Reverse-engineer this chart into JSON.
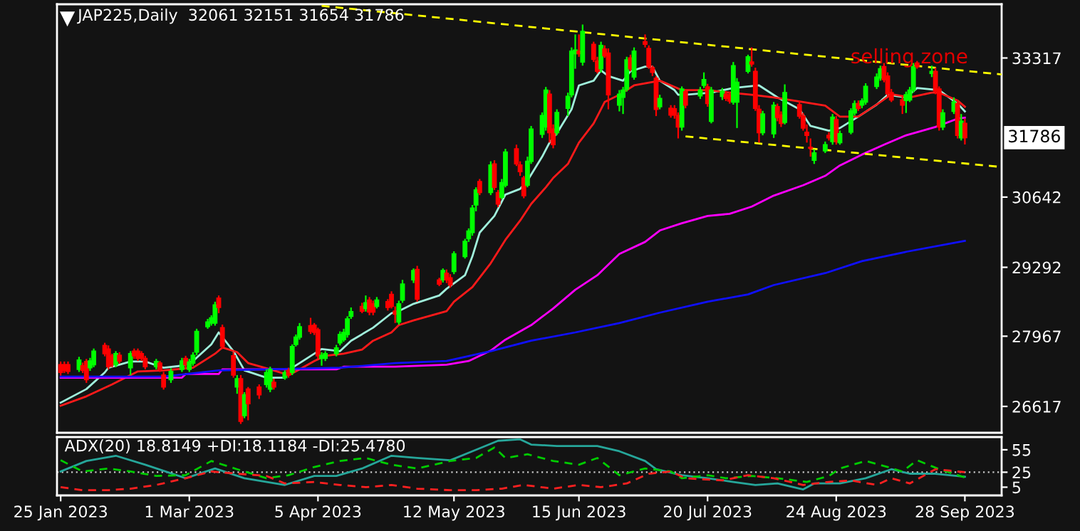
{
  "chart_data": [
    {
      "type": "candlestick",
      "title": "JAP225,Daily  32061 32151 31654 31786",
      "x": [
        "2023-01-25",
        "2023-01-26",
        "2023-01-27",
        "2023-01-30",
        "2023-01-31",
        "2023-02-01",
        "2023-02-02",
        "2023-02-03",
        "2023-02-06",
        "2023-02-07",
        "2023-02-08",
        "2023-02-09",
        "2023-02-10",
        "2023-02-13",
        "2023-02-14",
        "2023-02-15",
        "2023-02-16",
        "2023-02-17",
        "2023-02-20",
        "2023-02-21",
        "2023-02-22",
        "2023-02-24",
        "2023-02-27",
        "2023-02-28",
        "2023-03-01",
        "2023-03-02",
        "2023-03-03",
        "2023-03-06",
        "2023-03-07",
        "2023-03-08",
        "2023-03-09",
        "2023-03-10",
        "2023-03-13",
        "2023-03-14",
        "2023-03-15",
        "2023-03-16",
        "2023-03-17",
        "2023-03-20",
        "2023-03-22",
        "2023-03-23",
        "2023-03-24",
        "2023-03-27",
        "2023-03-28",
        "2023-03-29",
        "2023-03-30",
        "2023-03-31",
        "2023-04-03",
        "2023-04-04",
        "2023-04-05",
        "2023-04-06",
        "2023-04-07",
        "2023-04-10",
        "2023-04-11",
        "2023-04-12",
        "2023-04-13",
        "2023-04-14",
        "2023-04-17",
        "2023-04-18",
        "2023-04-19",
        "2023-04-20",
        "2023-04-21",
        "2023-04-24",
        "2023-04-25",
        "2023-04-26",
        "2023-04-27",
        "2023-04-28",
        "2023-05-01",
        "2023-05-02",
        "2023-05-08",
        "2023-05-09",
        "2023-05-10",
        "2023-05-11",
        "2023-05-12",
        "2023-05-15",
        "2023-05-16",
        "2023-05-17",
        "2023-05-18",
        "2023-05-19",
        "2023-05-22",
        "2023-05-23",
        "2023-05-24",
        "2023-05-25",
        "2023-05-26",
        "2023-05-29",
        "2023-05-30",
        "2023-05-31",
        "2023-06-01",
        "2023-06-02",
        "2023-06-05",
        "2023-06-06",
        "2023-06-07",
        "2023-06-08",
        "2023-06-09",
        "2023-06-12",
        "2023-06-13",
        "2023-06-14",
        "2023-06-15",
        "2023-06-16",
        "2023-06-19",
        "2023-06-20",
        "2023-06-21",
        "2023-06-22",
        "2023-06-23",
        "2023-06-26",
        "2023-06-27",
        "2023-06-28",
        "2023-06-29",
        "2023-06-30",
        "2023-07-03",
        "2023-07-04",
        "2023-07-05",
        "2023-07-06",
        "2023-07-07",
        "2023-07-10",
        "2023-07-11",
        "2023-07-12",
        "2023-07-13",
        "2023-07-14",
        "2023-07-18",
        "2023-07-19",
        "2023-07-20",
        "2023-07-21",
        "2023-07-24",
        "2023-07-25",
        "2023-07-26",
        "2023-07-27",
        "2023-07-28",
        "2023-07-31",
        "2023-08-01",
        "2023-08-02",
        "2023-08-03",
        "2023-08-04",
        "2023-08-07",
        "2023-08-08",
        "2023-08-09",
        "2023-08-10",
        "2023-08-14",
        "2023-08-15",
        "2023-08-16",
        "2023-08-17",
        "2023-08-18",
        "2023-08-21",
        "2023-08-22",
        "2023-08-23",
        "2023-08-24",
        "2023-08-25",
        "2023-08-28",
        "2023-08-29",
        "2023-08-30",
        "2023-08-31",
        "2023-09-01",
        "2023-09-04",
        "2023-09-05",
        "2023-09-06",
        "2023-09-07",
        "2023-09-08",
        "2023-09-11",
        "2023-09-12",
        "2023-09-13",
        "2023-09-14",
        "2023-09-15",
        "2023-09-19",
        "2023-09-20",
        "2023-09-21",
        "2023-09-22",
        "2023-09-25",
        "2023-09-26",
        "2023-09-27",
        "2023-09-28"
      ],
      "ohlc": [
        [
          27420,
          27480,
          27210,
          27270
        ],
        [
          27420,
          27480,
          27260,
          27310
        ],
        [
          27420,
          27480,
          27240,
          27290
        ],
        [
          27330,
          27570,
          27280,
          27510
        ],
        [
          27400,
          27460,
          27260,
          27310
        ],
        [
          27480,
          27530,
          27070,
          27130
        ],
        [
          27360,
          27550,
          27300,
          27490
        ],
        [
          27420,
          27730,
          27370,
          27680
        ],
        [
          27790,
          27840,
          27580,
          27630
        ],
        [
          27720,
          27790,
          27330,
          27380
        ],
        [
          27590,
          27630,
          27370,
          27420
        ],
        [
          27420,
          27680,
          27370,
          27630
        ],
        [
          27600,
          27660,
          27440,
          27490
        ],
        [
          27360,
          27680,
          27220,
          27630
        ],
        [
          27680,
          27730,
          27530,
          27590
        ],
        [
          27680,
          27730,
          27490,
          27540
        ],
        [
          27630,
          27680,
          27490,
          27540
        ],
        [
          27540,
          27590,
          27330,
          27380
        ],
        [
          27380,
          27530,
          27330,
          27480
        ],
        [
          27450,
          27490,
          27280,
          27330
        ],
        [
          27220,
          27280,
          26940,
          26990
        ],
        [
          27130,
          27350,
          27070,
          27290
        ],
        [
          27330,
          27550,
          27280,
          27490
        ],
        [
          27540,
          27590,
          27370,
          27420
        ],
        [
          27330,
          27530,
          27280,
          27470
        ],
        [
          27450,
          27660,
          27400,
          27600
        ],
        [
          27660,
          28110,
          27600,
          28060
        ],
        [
          28150,
          28300,
          28110,
          28240
        ],
        [
          28220,
          28370,
          28170,
          28320
        ],
        [
          28220,
          28630,
          28170,
          28570
        ],
        [
          28700,
          28750,
          28410,
          28520
        ],
        [
          28130,
          28190,
          27720,
          27770
        ],
        [
          27590,
          27660,
          27170,
          27220
        ],
        [
          26990,
          27220,
          26860,
          27150
        ],
        [
          27150,
          27220,
          26280,
          26330
        ],
        [
          26440,
          26890,
          26390,
          26840
        ],
        [
          26950,
          26990,
          26350,
          26670
        ],
        [
          26990,
          27040,
          26760,
          26840
        ],
        [
          27040,
          27330,
          26980,
          27270
        ],
        [
          26950,
          27380,
          26890,
          27330
        ],
        [
          27080,
          27150,
          26940,
          26990
        ],
        [
          27170,
          27310,
          27130,
          27270
        ],
        [
          27310,
          27360,
          27170,
          27220
        ],
        [
          27270,
          27810,
          27220,
          27770
        ],
        [
          27810,
          28000,
          27770,
          27950
        ],
        [
          27950,
          28220,
          27900,
          28150
        ],
        [
          28170,
          28320,
          28010,
          28060
        ],
        [
          28180,
          28220,
          27990,
          28040
        ],
        [
          28090,
          28130,
          27530,
          27590
        ],
        [
          27540,
          27660,
          27400,
          27600
        ],
        [
          27540,
          27680,
          27490,
          27630
        ],
        [
          27630,
          27800,
          27580,
          27740
        ],
        [
          27840,
          28060,
          27790,
          28000
        ],
        [
          27900,
          28110,
          27860,
          28040
        ],
        [
          28000,
          28350,
          27940,
          28300
        ],
        [
          28350,
          28520,
          28300,
          28440
        ],
        [
          28540,
          28610,
          28410,
          28450
        ],
        [
          28500,
          28750,
          28440,
          28610
        ],
        [
          28660,
          28720,
          28370,
          28430
        ],
        [
          28590,
          28650,
          28370,
          28430
        ],
        [
          28540,
          28720,
          28500,
          28660
        ],
        [
          28630,
          28680,
          28460,
          28520
        ],
        [
          28770,
          28830,
          28500,
          28540
        ],
        [
          28450,
          28540,
          28220,
          28390
        ],
        [
          28240,
          28650,
          28190,
          28590
        ],
        [
          28660,
          29050,
          28610,
          28970
        ],
        [
          29050,
          29270,
          28990,
          29230
        ],
        [
          29250,
          29320,
          28630,
          28680
        ],
        [
          29050,
          29090,
          28930,
          28970
        ],
        [
          29050,
          29270,
          29000,
          29230
        ],
        [
          29180,
          29250,
          28990,
          29050
        ],
        [
          29090,
          29160,
          28900,
          28950
        ],
        [
          29210,
          29600,
          29160,
          29550
        ],
        [
          29500,
          29840,
          29460,
          29790
        ],
        [
          29840,
          30040,
          29780,
          29990
        ],
        [
          29960,
          30490,
          29900,
          30430
        ],
        [
          30490,
          30830,
          30370,
          30780
        ],
        [
          30940,
          30990,
          30680,
          30730
        ],
        [
          30730,
          31330,
          30680,
          31260
        ],
        [
          31280,
          31350,
          30780,
          30830
        ],
        [
          30730,
          30780,
          30450,
          30510
        ],
        [
          30640,
          30990,
          30600,
          30920
        ],
        [
          30870,
          31570,
          30830,
          31510
        ],
        [
          31570,
          31650,
          31240,
          31280
        ],
        [
          31260,
          31330,
          31050,
          31130
        ],
        [
          31010,
          31050,
          30620,
          30670
        ],
        [
          30870,
          31420,
          30830,
          31330
        ],
        [
          31330,
          32010,
          31280,
          31950
        ],
        [
          31850,
          32270,
          31780,
          32210
        ],
        [
          31990,
          32760,
          31920,
          32700
        ],
        [
          32620,
          32700,
          31690,
          31880
        ],
        [
          31950,
          32040,
          31580,
          31650
        ],
        [
          31880,
          32330,
          31830,
          32270
        ],
        [
          32350,
          32650,
          32200,
          32580
        ],
        [
          32610,
          33520,
          32560,
          33450
        ],
        [
          33400,
          33770,
          33110,
          33470
        ],
        [
          33450,
          33770,
          33340,
          33400
        ],
        [
          33240,
          33960,
          33170,
          33830
        ],
        [
          33580,
          33630,
          33240,
          33290
        ],
        [
          33260,
          33340,
          33020,
          33060
        ],
        [
          33110,
          33630,
          33040,
          33560
        ],
        [
          33490,
          33560,
          33320,
          33360
        ],
        [
          33410,
          33500,
          32330,
          32610
        ],
        [
          32410,
          32700,
          32290,
          32620
        ],
        [
          32560,
          32760,
          32240,
          32700
        ],
        [
          32720,
          33340,
          32670,
          33280
        ],
        [
          33320,
          33380,
          33060,
          33110
        ],
        [
          32950,
          33520,
          32900,
          33450
        ],
        [
          33630,
          33770,
          33520,
          33580
        ],
        [
          33500,
          33560,
          33110,
          33150
        ],
        [
          33130,
          33170,
          32970,
          33040
        ],
        [
          32930,
          32970,
          32200,
          32330
        ],
        [
          32380,
          32610,
          32330,
          32540
        ],
        [
          32350,
          32410,
          32170,
          32220
        ],
        [
          32340,
          32410,
          32150,
          32220
        ],
        [
          32210,
          32270,
          31770,
          31990
        ],
        [
          31990,
          32770,
          31920,
          32720
        ],
        [
          32670,
          32720,
          32350,
          32410
        ],
        [
          32590,
          32760,
          32530,
          32700
        ],
        [
          32790,
          33040,
          32740,
          32900
        ],
        [
          32760,
          32820,
          32380,
          32440
        ],
        [
          32100,
          32760,
          32060,
          32700
        ],
        [
          32580,
          32740,
          32510,
          32680
        ],
        [
          32620,
          32680,
          32490,
          32540
        ],
        [
          32610,
          32670,
          32440,
          32490
        ],
        [
          32470,
          33240,
          32420,
          33170
        ],
        [
          32470,
          32930,
          31970,
          32850
        ],
        [
          33060,
          33380,
          33020,
          33340
        ],
        [
          33240,
          33520,
          33150,
          33200
        ],
        [
          33060,
          33130,
          32300,
          32350
        ],
        [
          32330,
          32410,
          31690,
          31880
        ],
        [
          31880,
          32300,
          31830,
          32240
        ],
        [
          31860,
          32470,
          31780,
          32410
        ],
        [
          32380,
          32440,
          32100,
          32170
        ],
        [
          32220,
          32290,
          31990,
          32060
        ],
        [
          32080,
          32810,
          32040,
          32650
        ],
        [
          32420,
          32490,
          32150,
          32200
        ],
        [
          32200,
          32260,
          31920,
          31970
        ],
        [
          31890,
          32040,
          31690,
          31830
        ],
        [
          31600,
          31770,
          31420,
          31580
        ],
        [
          31350,
          31560,
          31280,
          31490
        ],
        [
          31530,
          31710,
          31490,
          31650
        ],
        [
          31830,
          31890,
          31730,
          31780
        ],
        [
          31710,
          32240,
          31650,
          32180
        ],
        [
          32130,
          32200,
          31650,
          31710
        ],
        [
          31690,
          31920,
          31650,
          31860
        ],
        [
          31890,
          32350,
          31850,
          32300
        ],
        [
          32260,
          32500,
          32210,
          32440
        ],
        [
          32440,
          32500,
          32300,
          32350
        ],
        [
          32410,
          32540,
          32350,
          32490
        ],
        [
          32470,
          32830,
          32420,
          32770
        ],
        [
          32770,
          33020,
          32720,
          32950
        ],
        [
          32930,
          33170,
          32880,
          33110
        ],
        [
          33150,
          33220,
          32850,
          32900
        ],
        [
          32970,
          33040,
          32580,
          32630
        ],
        [
          32650,
          32720,
          32470,
          32510
        ],
        [
          32510,
          32580,
          32240,
          32410
        ],
        [
          32500,
          32670,
          32260,
          32610
        ],
        [
          32510,
          32760,
          32470,
          32700
        ],
        [
          32700,
          33220,
          32650,
          33150
        ],
        [
          33220,
          33260,
          33110,
          33150
        ],
        [
          33020,
          33170,
          32950,
          33060
        ],
        [
          33060,
          33130,
          32620,
          32680
        ],
        [
          32720,
          32770,
          31920,
          31990
        ],
        [
          31990,
          32330,
          31930,
          32260
        ],
        [
          32290,
          32560,
          32240,
          32470
        ],
        [
          32440,
          32510,
          31770,
          31830
        ],
        [
          31780,
          32240,
          31730,
          32100
        ],
        [
          32061,
          32151,
          31654,
          31786
        ]
      ],
      "series": [
        {
          "type": "line",
          "color": "#a0f0dc",
          "line_style": "solid",
          "x": [
            "2023-01-25",
            "2023-02-01",
            "2023-02-06",
            "2023-02-07",
            "2023-02-13",
            "2023-02-17",
            "2023-02-22",
            "2023-02-27",
            "2023-03-02",
            "2023-03-07",
            "2023-03-09",
            "2023-03-13",
            "2023-03-16",
            "2023-03-22",
            "2023-03-27",
            "2023-03-29",
            "2023-04-04",
            "2023-04-06",
            "2023-04-11",
            "2023-04-14",
            "2023-04-20",
            "2023-04-25",
            "2023-04-27",
            "2023-05-01",
            "2023-05-08",
            "2023-05-10",
            "2023-05-15",
            "2023-05-17",
            "2023-05-19",
            "2023-05-23",
            "2023-05-26",
            "2023-05-30",
            "2023-06-01",
            "2023-06-05",
            "2023-06-07",
            "2023-06-09",
            "2023-06-13",
            "2023-06-15",
            "2023-06-19",
            "2023-06-21",
            "2023-06-23",
            "2023-06-27",
            "2023-06-29",
            "2023-07-03",
            "2023-07-05",
            "2023-07-07",
            "2023-07-11",
            "2023-07-12",
            "2023-07-14",
            "2023-07-21",
            "2023-07-27",
            "2023-08-03",
            "2023-08-08",
            "2023-08-14",
            "2023-08-17",
            "2023-08-22",
            "2023-08-25",
            "2023-08-30",
            "2023-09-04",
            "2023-09-07",
            "2023-09-12",
            "2023-09-15",
            "2023-09-21",
            "2023-09-26",
            "2023-09-28"
          ],
          "values": [
            26690,
            26950,
            27270,
            27360,
            27480,
            27480,
            27360,
            27400,
            27490,
            27810,
            28040,
            27680,
            27310,
            27170,
            27170,
            27360,
            27630,
            27720,
            27680,
            27880,
            28130,
            28410,
            28450,
            28590,
            28750,
            28880,
            29140,
            29500,
            29960,
            30280,
            30690,
            30800,
            30960,
            31420,
            31690,
            31870,
            32330,
            32790,
            32880,
            33080,
            32970,
            32880,
            33060,
            33150,
            33150,
            32880,
            32700,
            32610,
            32610,
            32650,
            32740,
            32790,
            32560,
            32330,
            32010,
            31920,
            31970,
            32190,
            32420,
            32610,
            32560,
            32740,
            32700,
            32440,
            32290
          ]
        },
        {
          "type": "line",
          "color": "#ff1a1a",
          "line_style": "solid",
          "x": [
            "2023-01-25",
            "2023-02-01",
            "2023-02-08",
            "2023-02-15",
            "2023-02-22",
            "2023-03-02",
            "2023-03-08",
            "2023-03-10",
            "2023-03-14",
            "2023-03-17",
            "2023-03-23",
            "2023-03-28",
            "2023-03-30",
            "2023-04-04",
            "2023-04-07",
            "2023-04-12",
            "2023-04-17",
            "2023-04-20",
            "2023-04-25",
            "2023-04-27",
            "2023-05-01",
            "2023-05-10",
            "2023-05-12",
            "2023-05-17",
            "2023-05-22",
            "2023-05-26",
            "2023-05-30",
            "2023-06-02",
            "2023-06-06",
            "2023-06-08",
            "2023-06-12",
            "2023-06-15",
            "2023-06-19",
            "2023-06-22",
            "2023-06-26",
            "2023-06-30",
            "2023-07-07",
            "2023-07-13",
            "2023-07-20",
            "2023-07-26",
            "2023-08-01",
            "2023-08-07",
            "2023-08-15",
            "2023-08-21",
            "2023-08-25",
            "2023-08-30",
            "2023-09-05",
            "2023-09-08",
            "2023-09-13",
            "2023-09-19",
            "2023-09-21",
            "2023-09-26",
            "2023-09-28"
          ],
          "values": [
            26630,
            26810,
            27040,
            27290,
            27310,
            27360,
            27630,
            27750,
            27660,
            27450,
            27330,
            27220,
            27290,
            27490,
            27590,
            27630,
            27710,
            27880,
            28040,
            28180,
            28270,
            28450,
            28630,
            28910,
            29370,
            29820,
            30190,
            30510,
            30830,
            31010,
            31280,
            31690,
            32060,
            32470,
            32610,
            32790,
            32880,
            32700,
            32700,
            32650,
            32610,
            32560,
            32470,
            32400,
            32190,
            32190,
            32470,
            32620,
            32560,
            32650,
            32650,
            32500,
            32380
          ]
        },
        {
          "type": "line",
          "color": "#ff00ff",
          "line_style": "solid",
          "x": [
            "2023-01-25",
            "2023-02-27",
            "2023-02-28",
            "2023-03-09",
            "2023-03-10",
            "2023-04-10",
            "2023-04-12",
            "2023-04-26",
            "2023-05-10",
            "2023-05-16",
            "2023-05-22",
            "2023-05-26",
            "2023-06-02",
            "2023-06-08",
            "2023-06-14",
            "2023-06-20",
            "2023-06-26",
            "2023-07-03",
            "2023-07-07",
            "2023-07-13",
            "2023-07-20",
            "2023-07-26",
            "2023-08-01",
            "2023-08-07",
            "2023-08-15",
            "2023-08-21",
            "2023-08-25",
            "2023-08-31",
            "2023-09-06",
            "2023-09-12",
            "2023-09-20",
            "2023-09-26",
            "2023-09-28"
          ],
          "values": [
            27170,
            27170,
            27240,
            27240,
            27330,
            27330,
            27380,
            27380,
            27420,
            27490,
            27690,
            27900,
            28180,
            28500,
            28860,
            29140,
            29550,
            29780,
            30000,
            30140,
            30280,
            30320,
            30460,
            30670,
            30870,
            31050,
            31250,
            31460,
            31650,
            31830,
            31990,
            32150,
            32170
          ]
        },
        {
          "type": "line",
          "color": "#1010ff",
          "line_style": "solid",
          "x": [
            "2023-01-25",
            "2023-02-22",
            "2023-03-09",
            "2023-04-11",
            "2023-04-26",
            "2023-05-10",
            "2023-05-22",
            "2023-06-02",
            "2023-06-14",
            "2023-06-26",
            "2023-07-07",
            "2023-07-20",
            "2023-07-31",
            "2023-08-07",
            "2023-08-21",
            "2023-08-31",
            "2023-09-12",
            "2023-09-28"
          ],
          "values": [
            27190,
            27190,
            27310,
            27360,
            27450,
            27490,
            27680,
            27880,
            28040,
            28220,
            28420,
            28630,
            28770,
            28950,
            29180,
            29410,
            29590,
            29800
          ]
        },
        {
          "type": "line",
          "color": "#ffff00",
          "line_style": "dashed",
          "x": [
            "2023-04-06",
            "2023-10-08"
          ],
          "values": [
            34320,
            33000
          ]
        },
        {
          "type": "line",
          "color": "#ffff00",
          "line_style": "dashed",
          "x": [
            "2023-07-14",
            "2023-10-08"
          ],
          "values": [
            31810,
            31220
          ]
        }
      ],
      "xlim": [
        "2023-01-24",
        "2023-10-08"
      ],
      "ylim": [
        26110,
        34350
      ],
      "yticks": [
        33317,
        30642,
        29292,
        27967,
        26617
      ],
      "tick_labels": "y",
      "annotations": [
        "selling zone",
        {
          "text": "31786",
          "y": 31786
        }
      ]
    },
    {
      "type": "line",
      "title": "ADX(20) 18.8149 +DI:18.1184 -DI:25.4780",
      "series": [
        {
          "color": "#26a69a",
          "line_style": "solid",
          "x": [
            "2023-01-25",
            "2023-02-01",
            "2023-02-09",
            "2023-02-17",
            "2023-02-28",
            "2023-03-08",
            "2023-03-16",
            "2023-03-27",
            "2023-04-04",
            "2023-04-10",
            "2023-04-17",
            "2023-04-25",
            "2023-05-02",
            "2023-05-11",
            "2023-05-17",
            "2023-05-24",
            "2023-05-30",
            "2023-06-02",
            "2023-06-09",
            "2023-06-15",
            "2023-06-20",
            "2023-06-26",
            "2023-07-03",
            "2023-07-06",
            "2023-07-13",
            "2023-07-20",
            "2023-07-27",
            "2023-08-02",
            "2023-08-08",
            "2023-08-15",
            "2023-08-18",
            "2023-08-25",
            "2023-09-01",
            "2023-09-08",
            "2023-09-13",
            "2023-09-20",
            "2023-09-28"
          ],
          "values": [
            26,
            40,
            47,
            35,
            17,
            30,
            17,
            8,
            20,
            20,
            30,
            47,
            44,
            41,
            53,
            67,
            69,
            62,
            60,
            60,
            60,
            53,
            40,
            29,
            21,
            17,
            12,
            8,
            10,
            2,
            10,
            10,
            17,
            29,
            23,
            23,
            19
          ]
        },
        {
          "color": "#00cc00",
          "line_style": "dashed",
          "x": [
            "2023-01-25",
            "2023-01-31",
            "2023-02-07",
            "2023-02-13",
            "2023-02-20",
            "2023-02-28",
            "2023-03-07",
            "2023-03-14",
            "2023-03-22",
            "2023-03-28",
            "2023-04-04",
            "2023-04-11",
            "2023-04-18",
            "2023-04-25",
            "2023-05-02",
            "2023-05-11",
            "2023-05-18",
            "2023-05-23",
            "2023-05-26",
            "2023-06-01",
            "2023-06-08",
            "2023-06-15",
            "2023-06-20",
            "2023-06-26",
            "2023-07-03",
            "2023-07-10",
            "2023-07-13",
            "2023-07-20",
            "2023-07-25",
            "2023-08-01",
            "2023-08-08",
            "2023-08-16",
            "2023-08-22",
            "2023-08-25",
            "2023-09-01",
            "2023-09-07",
            "2023-09-11",
            "2023-09-15",
            "2023-09-21",
            "2023-09-28"
          ],
          "values": [
            41,
            26,
            30,
            26,
            20,
            21,
            40,
            29,
            17,
            21,
            32,
            40,
            44,
            35,
            30,
            40,
            44,
            58,
            44,
            49,
            40,
            35,
            44,
            21,
            30,
            26,
            17,
            21,
            17,
            20,
            17,
            12,
            20,
            30,
            40,
            32,
            26,
            41,
            29,
            18
          ]
        },
        {
          "color": "#ff2020",
          "line_style": "dashed",
          "x": [
            "2023-01-25",
            "2023-01-31",
            "2023-02-07",
            "2023-02-13",
            "2023-02-20",
            "2023-02-28",
            "2023-03-07",
            "2023-03-14",
            "2023-03-22",
            "2023-03-27",
            "2023-04-04",
            "2023-04-11",
            "2023-04-18",
            "2023-04-25",
            "2023-05-02",
            "2023-05-11",
            "2023-05-18",
            "2023-05-25",
            "2023-05-31",
            "2023-06-08",
            "2023-06-15",
            "2023-06-21",
            "2023-06-28",
            "2023-07-04",
            "2023-07-10",
            "2023-07-14",
            "2023-07-24",
            "2023-07-31",
            "2023-08-07",
            "2023-08-15",
            "2023-08-22",
            "2023-08-28",
            "2023-09-04",
            "2023-09-08",
            "2023-09-13",
            "2023-09-20",
            "2023-09-28"
          ],
          "values": [
            5,
            1,
            1,
            3,
            8,
            17,
            26,
            23,
            20,
            10,
            12,
            8,
            5,
            8,
            3,
            1,
            1,
            3,
            8,
            3,
            8,
            5,
            10,
            23,
            26,
            17,
            14,
            21,
            17,
            8,
            12,
            14,
            8,
            17,
            10,
            29,
            25
          ]
        }
      ],
      "xlim": [
        "2023-01-24",
        "2023-10-08"
      ],
      "xticks": [
        {
          "value": "2023-01-25",
          "label": "25 Jan 2023"
        },
        {
          "value": "2023-03-01",
          "label": "1 Mar 2023"
        },
        {
          "value": "2023-04-05",
          "label": "5 Apr 2023"
        },
        {
          "value": "2023-05-12",
          "label": "12 May 2023"
        },
        {
          "value": "2023-06-15",
          "label": "15 Jun 2023"
        },
        {
          "value": "2023-07-20",
          "label": "20 Jul 2023"
        },
        {
          "value": "2023-08-24",
          "label": "24 Aug 2023"
        },
        {
          "value": "2023-09-28",
          "label": "28 Sep 2023"
        }
      ],
      "ylim": [
        -6,
        72
      ],
      "yticks": [
        55,
        25,
        5
      ],
      "ref_lines": [
        {
          "axis": "y",
          "value": 25,
          "color": "#c8c8c8",
          "line_style": "dotted"
        }
      ]
    }
  ]
}
